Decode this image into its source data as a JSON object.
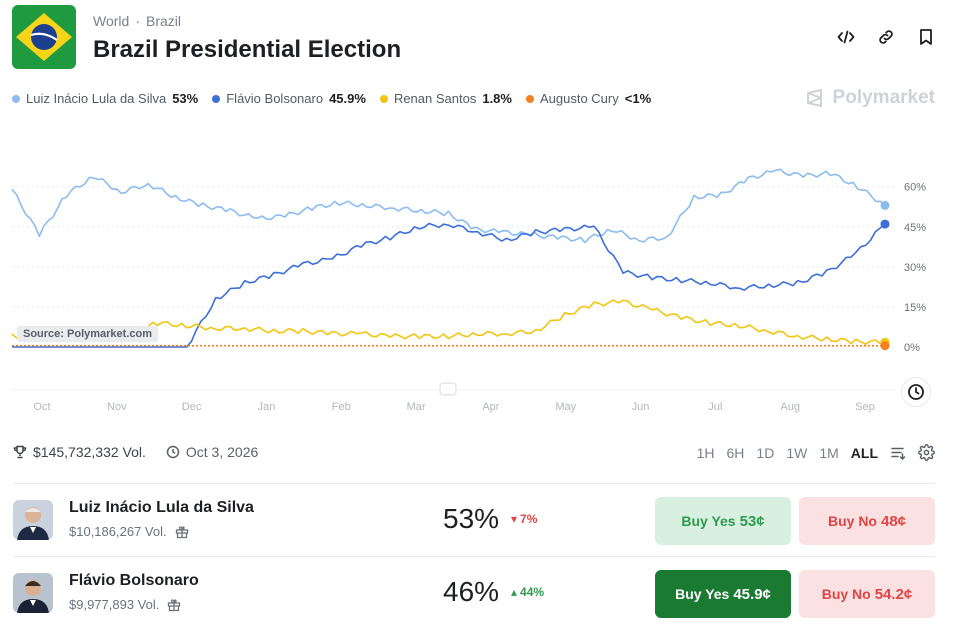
{
  "header": {
    "breadcrumb": [
      "World",
      "Brazil"
    ],
    "title": "Brazil Presidential Election",
    "icons": [
      "embed-icon",
      "link-icon",
      "bookmark-icon"
    ]
  },
  "legend": [
    {
      "name": "Luiz Inácio Lula da Silva",
      "value": "53%",
      "color": "#8bbcf0"
    },
    {
      "name": "Flávio Bolsonaro",
      "value": "45.9%",
      "color": "#3d6fd9"
    },
    {
      "name": "Renan Santos",
      "value": "1.8%",
      "color": "#f2c511"
    },
    {
      "name": "Augusto Cury",
      "value": "<1%",
      "color": "#f5801f"
    }
  ],
  "brand": "Polymarket",
  "source_label": "Source: Polymarket.com",
  "chart_data": {
    "type": "line",
    "x_labels": [
      "Oct",
      "Nov",
      "Dec",
      "Jan",
      "Feb",
      "Mar",
      "Apr",
      "May",
      "Jun",
      "Jul",
      "Aug",
      "Sep"
    ],
    "y_ticks": [
      "60%",
      "45%",
      "30%",
      "15%",
      "0%"
    ],
    "ylim": [
      0,
      70
    ],
    "grid": "dotted horizontal",
    "series": [
      {
        "name": "Luiz Inácio Lula da Silva",
        "color": "#8bbcf0",
        "values": [
          59,
          42,
          57,
          64,
          58,
          61,
          56,
          53,
          51,
          48,
          49,
          52,
          54,
          53,
          52,
          51,
          50,
          44,
          43,
          42,
          41,
          40,
          44,
          40,
          41,
          56,
          57,
          63,
          66,
          64,
          65,
          60,
          53
        ]
      },
      {
        "name": "Flávio Bolsonaro",
        "color": "#3d6fd9",
        "values": [
          0,
          0,
          0,
          0,
          0,
          0,
          0,
          18,
          24,
          27,
          31,
          33,
          38,
          41,
          45,
          46,
          43,
          40,
          43,
          44,
          45,
          28,
          26,
          25,
          24,
          22,
          23,
          24,
          28,
          35,
          46
        ]
      },
      {
        "name": "Renan Santos",
        "color": "#f2c511",
        "values": [
          4,
          3,
          5,
          4,
          5,
          9,
          8,
          7,
          7,
          6,
          6,
          5,
          5,
          4,
          4,
          4,
          5,
          5,
          6,
          12,
          16,
          17,
          14,
          11,
          9,
          8,
          6,
          4,
          3,
          2,
          1.8
        ]
      },
      {
        "name": "Augusto Cury",
        "color": "#f5801f",
        "values": [
          0.5,
          0.5,
          0.5,
          0.5,
          0.5,
          0.5,
          0.5,
          0.5,
          0.5,
          0.5,
          0.5,
          0.5,
          0.5,
          0.5,
          0.5,
          0.5,
          0.5,
          0.5,
          0.5,
          0.5,
          0.5,
          0.5,
          0.5,
          0.5,
          0.5,
          0.5,
          0.5,
          0.5,
          0.5,
          0.5,
          0.5
        ]
      }
    ]
  },
  "meta": {
    "volume": "$145,732,332 Vol.",
    "date": "Oct 3, 2026"
  },
  "ranges": [
    "1H",
    "6H",
    "1D",
    "1W",
    "1M",
    "ALL"
  ],
  "active_range": "ALL",
  "outcomes": [
    {
      "name": "Luiz Inácio Lula da Silva",
      "volume": "$10,186,267 Vol.",
      "percent": "53%",
      "change": "7%",
      "change_dir": "down",
      "yes_label": "Buy Yes",
      "yes_price": "53¢",
      "no_label": "Buy No",
      "no_price": "48¢"
    },
    {
      "name": "Flávio Bolsonaro",
      "volume": "$9,977,893 Vol.",
      "percent": "46%",
      "change": "44%",
      "change_dir": "up",
      "yes_label": "Buy Yes",
      "yes_price": "45.9¢",
      "no_label": "Buy No",
      "no_price": "54.2¢"
    }
  ]
}
